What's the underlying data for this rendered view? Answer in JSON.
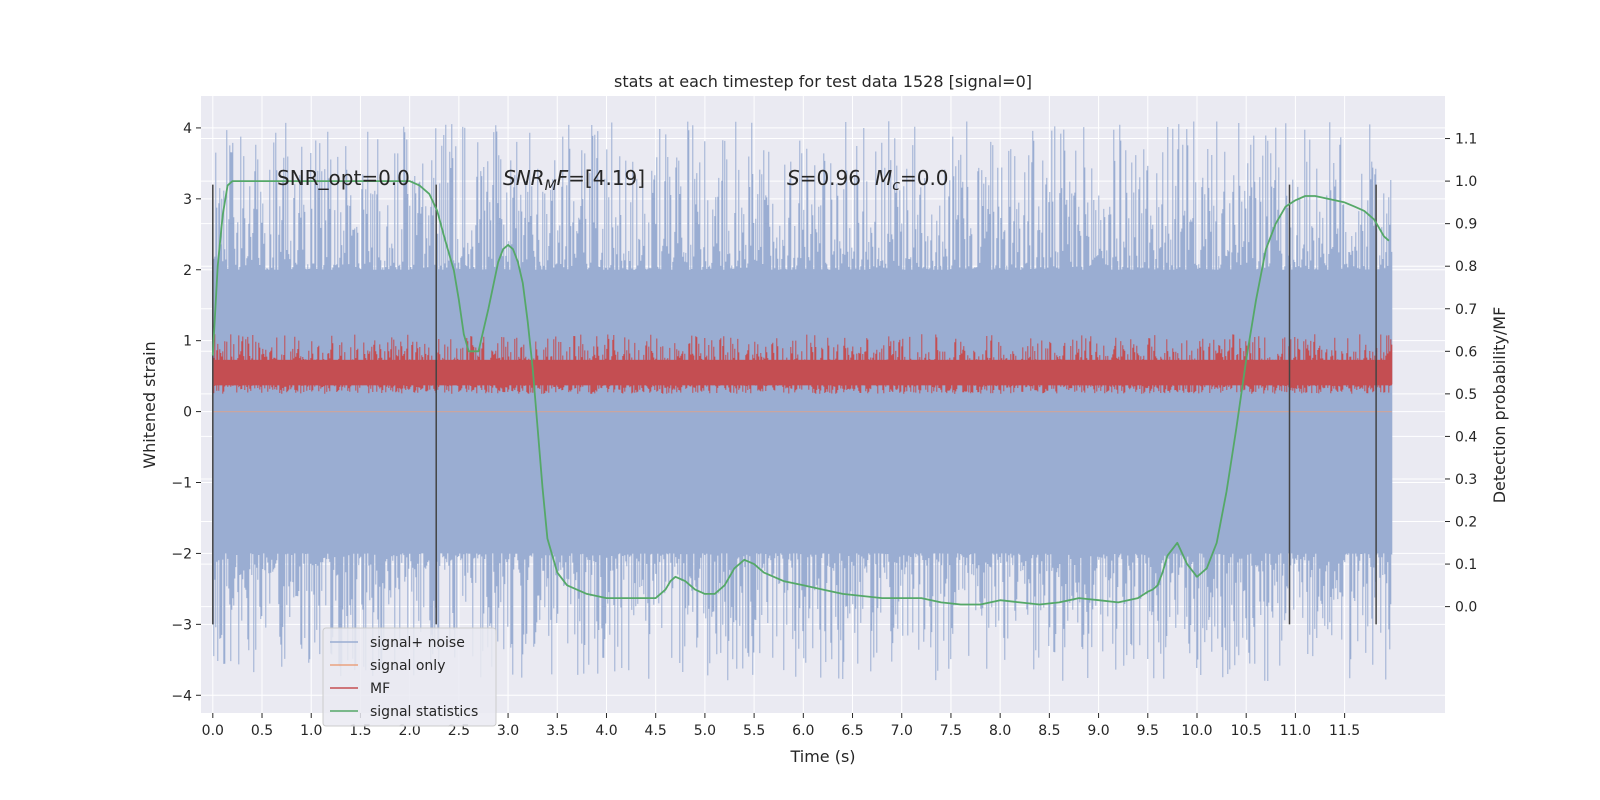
{
  "chart_data": {
    "type": "line",
    "title": "stats at each timestep for test data 1528 [signal=0]",
    "xlabel": "Time (s)",
    "ylabel": "Whitened strain",
    "y2label": "Detection probability/MF",
    "xlim": [
      -0.12,
      12.52
    ],
    "ylim": [
      -4.25,
      4.45
    ],
    "y2lim": [
      -0.25,
      1.2
    ],
    "xticks": [
      0.0,
      0.5,
      1.0,
      1.5,
      2.0,
      2.5,
      3.0,
      3.5,
      4.0,
      4.5,
      5.0,
      5.5,
      6.0,
      6.5,
      7.0,
      7.5,
      8.0,
      8.5,
      9.0,
      9.5,
      10.0,
      10.5,
      11.0,
      11.5
    ],
    "xtick_labels": [
      "0.0",
      "0.5",
      "1.0",
      "1.5",
      "2.0",
      "2.5",
      "3.0",
      "3.5",
      "4.0",
      "4.5",
      "5.0",
      "5.5",
      "6.0",
      "6.5",
      "7.0",
      "7.5",
      "8.0",
      "8.5",
      "9.0",
      "9.5",
      "10.0",
      "10.5",
      "11.0",
      "11.5"
    ],
    "yticks": [
      4,
      3,
      2,
      1,
      0,
      -1,
      -2,
      -3,
      -4
    ],
    "ytick_labels": [
      "4",
      "3",
      "2",
      "1",
      "0",
      "−1",
      "−2",
      "−3",
      "−4"
    ],
    "y2ticks": [
      1.1,
      1.0,
      0.9,
      0.8,
      0.7,
      0.6,
      0.5,
      0.4,
      0.3,
      0.2,
      0.1,
      0.0
    ],
    "y2tick_labels": [
      "1.1",
      "1.0",
      "0.9",
      "0.8",
      "0.7",
      "0.6",
      "0.5",
      "0.4",
      "0.3",
      "0.2",
      "0.1",
      "0.0"
    ],
    "grid": true,
    "legend_placement": "lower-left",
    "colors": {
      "plot_background": "#eaeaf2",
      "grid": "#ffffff",
      "signal_noise": "#9aadd2",
      "signal_only": "#e9a17f",
      "mf": "#c44e52",
      "signal_statistics": "#55a868",
      "marker_lines": "#444444"
    },
    "annotations": {
      "snr_opt": "SNR_opt=0.0",
      "snr_mf_main": "SNR",
      "snr_mf_sub": "M",
      "snr_mf_it": "F",
      "snr_mf_rest": "=[4.19]",
      "s_sym": "S",
      "s_val": "=0.96",
      "mc_sym": "M",
      "mc_sub": "c",
      "mc_val": "=0.0"
    },
    "vertical_markers_x": [
      0.0,
      2.27,
      10.94,
      11.82
    ],
    "vertical_markers_y_range": [
      -3.0,
      3.2
    ],
    "series": [
      {
        "name": "signal+ noise",
        "kind": "noise_band",
        "x_range": [
          0.0,
          11.98
        ],
        "dense_range": [
          -2.0,
          2.0
        ],
        "peak_range": [
          -3.8,
          4.1
        ]
      },
      {
        "name": "signal only",
        "kind": "line",
        "x": [
          0.0,
          11.98
        ],
        "y": [
          0.0,
          0.0
        ]
      },
      {
        "name": "MF",
        "kind": "noise_band_right_axis",
        "x_range": [
          0.0,
          11.98
        ],
        "dense_range": [
          0.5,
          0.64
        ],
        "peak_range": [
          0.5,
          0.66
        ]
      },
      {
        "name": "signal statistics",
        "kind": "line_right_axis",
        "x": [
          0.0,
          0.05,
          0.1,
          0.15,
          0.2,
          0.3,
          0.5,
          1.0,
          1.5,
          2.0,
          2.1,
          2.2,
          2.28,
          2.35,
          2.45,
          2.5,
          2.55,
          2.6,
          2.7,
          2.8,
          2.9,
          2.95,
          3.0,
          3.05,
          3.1,
          3.15,
          3.2,
          3.25,
          3.3,
          3.35,
          3.4,
          3.5,
          3.6,
          3.8,
          4.0,
          4.2,
          4.4,
          4.5,
          4.6,
          4.65,
          4.7,
          4.8,
          4.9,
          5.0,
          5.1,
          5.2,
          5.3,
          5.4,
          5.5,
          5.6,
          5.8,
          6.0,
          6.2,
          6.4,
          6.6,
          6.8,
          7.0,
          7.2,
          7.4,
          7.6,
          7.8,
          8.0,
          8.2,
          8.4,
          8.6,
          8.8,
          9.0,
          9.2,
          9.4,
          9.5,
          9.55,
          9.6,
          9.65,
          9.7,
          9.8,
          9.9,
          10.0,
          10.1,
          10.2,
          10.3,
          10.4,
          10.5,
          10.6,
          10.7,
          10.8,
          10.9,
          11.0,
          11.1,
          11.2,
          11.3,
          11.4,
          11.5,
          11.6,
          11.7,
          11.8,
          11.85,
          11.9,
          11.95
        ],
        "y": [
          0.59,
          0.8,
          0.92,
          0.99,
          1.0,
          1.0,
          1.0,
          1.0,
          1.0,
          1.0,
          0.99,
          0.97,
          0.93,
          0.87,
          0.79,
          0.72,
          0.64,
          0.6,
          0.6,
          0.7,
          0.81,
          0.84,
          0.85,
          0.84,
          0.81,
          0.76,
          0.67,
          0.56,
          0.42,
          0.28,
          0.16,
          0.08,
          0.05,
          0.03,
          0.02,
          0.02,
          0.02,
          0.02,
          0.04,
          0.06,
          0.07,
          0.06,
          0.04,
          0.03,
          0.03,
          0.05,
          0.09,
          0.11,
          0.1,
          0.08,
          0.06,
          0.05,
          0.04,
          0.03,
          0.025,
          0.02,
          0.02,
          0.02,
          0.01,
          0.005,
          0.005,
          0.015,
          0.01,
          0.005,
          0.01,
          0.02,
          0.015,
          0.01,
          0.02,
          0.035,
          0.04,
          0.05,
          0.08,
          0.12,
          0.15,
          0.1,
          0.07,
          0.09,
          0.15,
          0.27,
          0.42,
          0.58,
          0.72,
          0.84,
          0.9,
          0.94,
          0.955,
          0.965,
          0.965,
          0.96,
          0.955,
          0.95,
          0.94,
          0.93,
          0.91,
          0.89,
          0.87,
          0.86
        ]
      }
    ]
  }
}
